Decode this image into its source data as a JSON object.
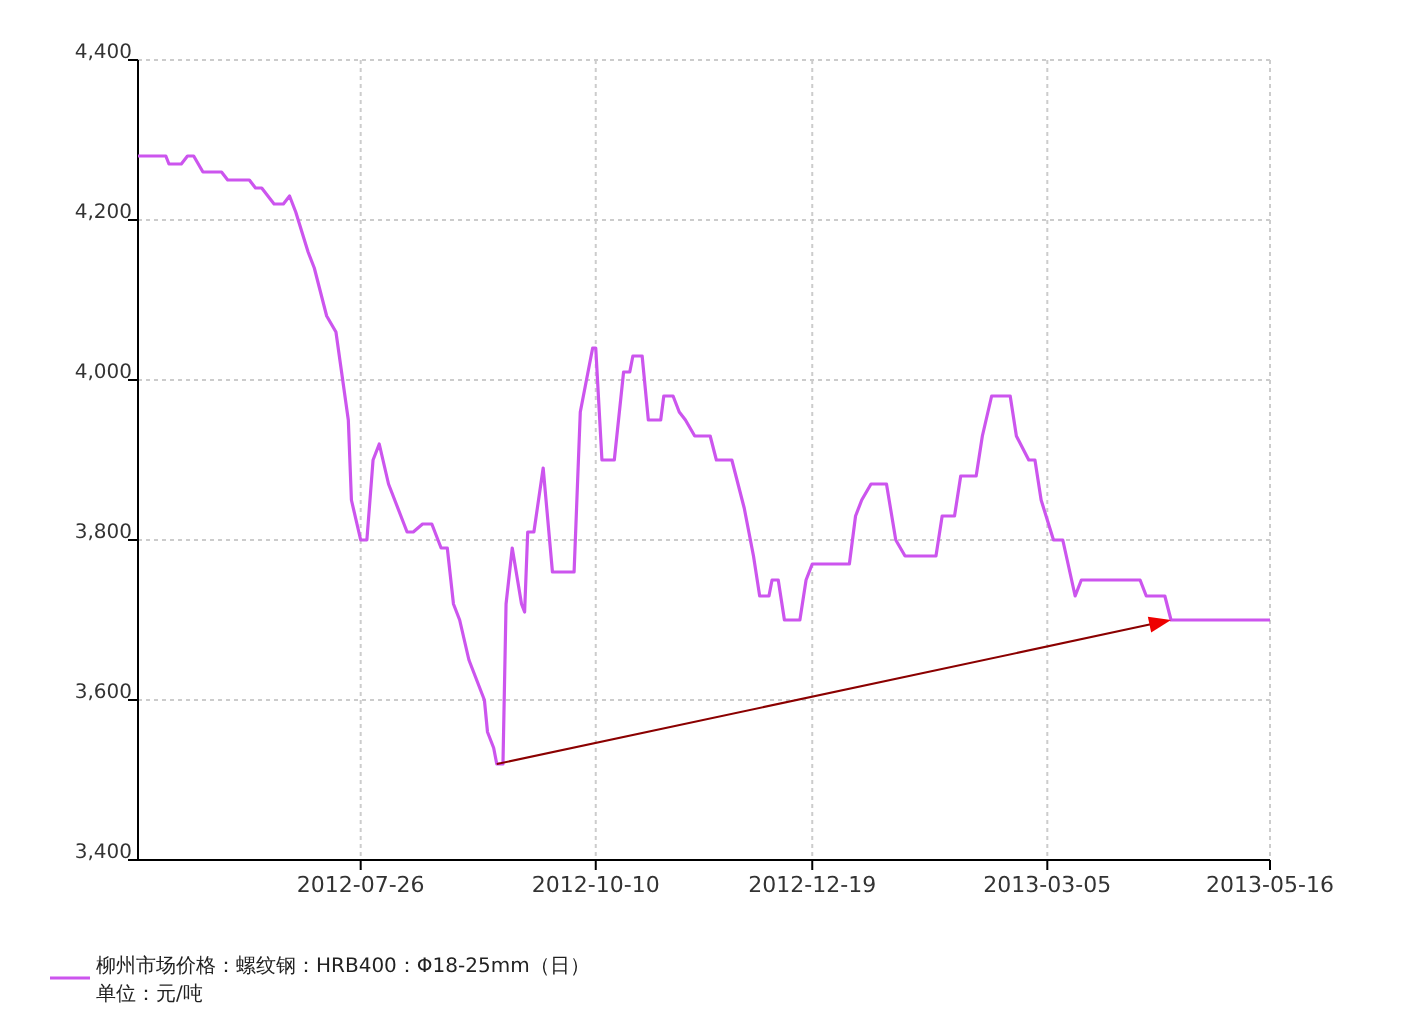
{
  "chart_data": {
    "type": "line",
    "x": [
      "2012-05-15",
      "2012-05-24",
      "2012-05-25",
      "2012-05-29",
      "2012-05-31",
      "2012-06-02",
      "2012-06-05",
      "2012-06-11",
      "2012-06-13",
      "2012-06-20",
      "2012-06-22",
      "2012-06-24",
      "2012-06-28",
      "2012-07-01",
      "2012-07-03",
      "2012-07-05",
      "2012-07-09",
      "2012-07-11",
      "2012-07-15",
      "2012-07-18",
      "2012-07-22",
      "2012-07-23",
      "2012-07-26",
      "2012-07-28",
      "2012-07-30",
      "2012-08-01",
      "2012-08-04",
      "2012-08-09",
      "2012-08-10",
      "2012-08-12",
      "2012-08-15",
      "2012-08-18",
      "2012-08-21",
      "2012-08-23",
      "2012-08-25",
      "2012-08-27",
      "2012-08-30",
      "2012-09-04",
      "2012-09-05",
      "2012-09-07",
      "2012-09-08",
      "2012-09-10",
      "2012-09-11",
      "2012-09-13",
      "2012-09-16",
      "2012-09-17",
      "2012-09-18",
      "2012-09-20",
      "2012-09-23",
      "2012-09-26",
      "2012-10-03",
      "2012-10-05",
      "2012-10-08",
      "2012-10-09",
      "2012-10-10",
      "2012-10-12",
      "2012-10-16",
      "2012-10-19",
      "2012-10-21",
      "2012-10-22",
      "2012-10-25",
      "2012-10-27",
      "2012-10-31",
      "2012-11-01",
      "2012-11-04",
      "2012-11-06",
      "2012-11-08",
      "2012-11-11",
      "2012-11-16",
      "2012-11-18",
      "2012-11-23",
      "2012-11-27",
      "2012-11-30",
      "2012-12-02",
      "2012-12-05",
      "2012-12-06",
      "2012-12-08",
      "2012-12-10",
      "2012-12-15",
      "2012-12-17",
      "2012-12-19",
      "2012-12-31",
      "2013-01-02",
      "2013-01-04",
      "2013-01-07",
      "2013-01-12",
      "2013-01-15",
      "2013-01-18",
      "2013-01-28",
      "2013-01-30",
      "2013-02-03",
      "2013-02-05",
      "2013-02-10",
      "2013-02-12",
      "2013-02-15",
      "2013-02-21",
      "2013-02-23",
      "2013-02-27",
      "2013-03-01",
      "2013-03-03",
      "2013-03-07",
      "2013-03-10",
      "2013-03-14",
      "2013-03-16",
      "2013-04-04",
      "2013-04-06",
      "2013-04-12",
      "2013-04-14",
      "2013-05-16"
    ],
    "series": [
      {
        "name": "柳州市场价格：螺纹钢：HRB400：Φ18-25mm（日）",
        "color": "#cc55ee",
        "values": [
          4280,
          4280,
          4270,
          4270,
          4280,
          4280,
          4260,
          4260,
          4250,
          4250,
          4240,
          4240,
          4220,
          4220,
          4230,
          4210,
          4160,
          4140,
          4080,
          4060,
          3950,
          3850,
          3800,
          3800,
          3900,
          3920,
          3870,
          3820,
          3810,
          3810,
          3820,
          3820,
          3790,
          3790,
          3720,
          3700,
          3650,
          3600,
          3560,
          3540,
          3520,
          3520,
          3720,
          3790,
          3720,
          3710,
          3810,
          3810,
          3890,
          3760,
          3760,
          3960,
          4020,
          4040,
          4040,
          3900,
          3900,
          4010,
          4010,
          4030,
          4030,
          3950,
          3950,
          3980,
          3980,
          3960,
          3950,
          3930,
          3930,
          3900,
          3900,
          3840,
          3780,
          3730,
          3730,
          3750,
          3750,
          3700,
          3700,
          3750,
          3770,
          3770,
          3830,
          3850,
          3870,
          3870,
          3800,
          3780,
          3780,
          3830,
          3830,
          3880,
          3880,
          3930,
          3980,
          3980,
          3930,
          3900,
          3900,
          3850,
          3800,
          3800,
          3730,
          3750,
          3750,
          3730,
          3730,
          3700,
          3700
        ]
      }
    ],
    "xlim": [
      "2012-05-15",
      "2013-05-16"
    ],
    "xticks": [
      "2012-07-26",
      "2012-10-10",
      "2012-12-19",
      "2013-03-05",
      "2013-05-16"
    ],
    "ylim": [
      3400,
      4400
    ],
    "yticks": [
      {
        "value": 3400,
        "label": "3,400"
      },
      {
        "value": 3600,
        "label": "3,600"
      },
      {
        "value": 3800,
        "label": "3,800"
      },
      {
        "value": 4000,
        "label": "4,000"
      },
      {
        "value": 4200,
        "label": "4,200"
      },
      {
        "value": 4400,
        "label": "4,400"
      }
    ],
    "grid": true,
    "legend": "bottom left",
    "marker": "none",
    "line_style": "solid",
    "annotations": [
      "单位：元/吨"
    ]
  }
}
